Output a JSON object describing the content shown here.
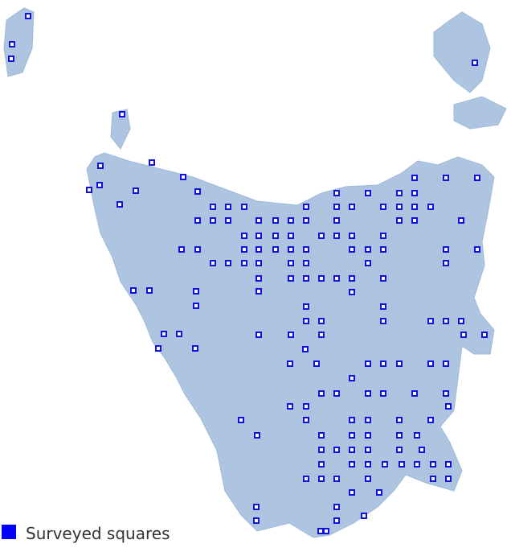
{
  "legend": {
    "label": "Surveyed squares"
  }
}
